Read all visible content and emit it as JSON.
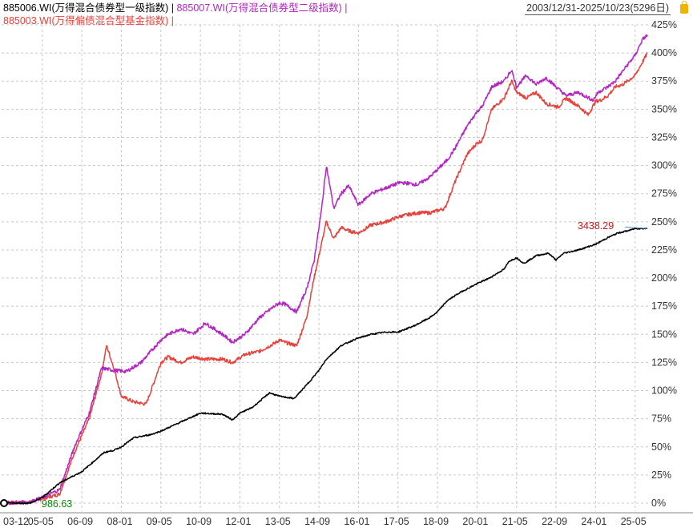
{
  "legend": {
    "s1": "885006.WI(万得混合债券型一级指数) |",
    "s2": "885007.WI(万得混合债券型二级指数) |",
    "s3": "885003.WI(万得偏债混合型基金指数) |"
  },
  "range_label": "2003/12/31-2025/10/23(5296日)",
  "end_label": "3438.29",
  "start_label": "986.63",
  "colors": {
    "s1": "#000000",
    "s2": "#b326c1",
    "s3": "#e8403a",
    "grid": "#c8c8c8",
    "axis_text": "#333333",
    "end_label": "#c0171b",
    "start_label": "#0a8a0a"
  },
  "chart_data": {
    "type": "line",
    "y_axis_side": "right",
    "y_unit": "%",
    "ylim": [
      0,
      425
    ],
    "yticks": [
      "0%",
      "25%",
      "50%",
      "75%",
      "100%",
      "125%",
      "150%",
      "175%",
      "200%",
      "225%",
      "250%",
      "275%",
      "300%",
      "325%",
      "350%",
      "375%",
      "400%",
      "425%"
    ],
    "x_ticks": [
      "03-12",
      "05-05",
      "06-09",
      "08-01",
      "09-05",
      "10-09",
      "12-01",
      "13-05",
      "14-09",
      "16-01",
      "17-05",
      "18-09",
      "20-01",
      "21-05",
      "22-09",
      "24-01",
      "25-05"
    ],
    "grid": true,
    "series": [
      {
        "name": "885006.WI(万得混合债券型一级指数)",
        "x": [
          "2003-12",
          "2004-12",
          "2005-05",
          "2005-12",
          "2006-09",
          "2007-06",
          "2007-10",
          "2008-01",
          "2008-06",
          "2009-01",
          "2009-05",
          "2009-08",
          "2009-12",
          "2010-09",
          "2011-06",
          "2011-10",
          "2012-01",
          "2012-06",
          "2013-01",
          "2013-05",
          "2013-11",
          "2014-04",
          "2014-09",
          "2014-12",
          "2015-06",
          "2015-12",
          "2016-06",
          "2016-12",
          "2017-05",
          "2017-12",
          "2018-06",
          "2018-09",
          "2019-01",
          "2019-06",
          "2020-01",
          "2020-06",
          "2020-12",
          "2021-02",
          "2021-05",
          "2021-08",
          "2022-01",
          "2022-06",
          "2022-09",
          "2022-12",
          "2023-06",
          "2024-01",
          "2024-06",
          "2024-10",
          "2025-02",
          "2025-05",
          "2025-10"
        ],
        "values": [
          0,
          0,
          5,
          18,
          28,
          45,
          47,
          50,
          58,
          61,
          64,
          67,
          71,
          80,
          79,
          74,
          80,
          85,
          98,
          95,
          93,
          105,
          118,
          128,
          140,
          146,
          150,
          152,
          152,
          158,
          165,
          170,
          180,
          187,
          195,
          200,
          208,
          215,
          218,
          213,
          220,
          222,
          216,
          222,
          225,
          230,
          236,
          240,
          242,
          244,
          244
        ]
      },
      {
        "name": "885007.WI(万得混合债券型二级指数)",
        "x": [
          "2003-12",
          "2004-12",
          "2005-05",
          "2005-12",
          "2006-06",
          "2006-12",
          "2007-05",
          "2007-10",
          "2008-03",
          "2008-09",
          "2009-01",
          "2009-05",
          "2009-08",
          "2010-01",
          "2010-06",
          "2010-11",
          "2011-06",
          "2011-10",
          "2012-03",
          "2012-09",
          "2013-03",
          "2013-05",
          "2013-07",
          "2013-12",
          "2014-04",
          "2014-07",
          "2014-10",
          "2014-12",
          "2015-03",
          "2015-06",
          "2015-09",
          "2016-01",
          "2016-06",
          "2016-12",
          "2017-06",
          "2018-01",
          "2018-06",
          "2019-01",
          "2019-04",
          "2019-09",
          "2020-01",
          "2020-03",
          "2020-07",
          "2020-12",
          "2021-03",
          "2021-05",
          "2021-09",
          "2022-01",
          "2022-05",
          "2022-10",
          "2023-01",
          "2023-06",
          "2023-12",
          "2024-02",
          "2024-06",
          "2024-09",
          "2024-12",
          "2025-05",
          "2025-08",
          "2025-10"
        ],
        "values": [
          0,
          1,
          5,
          12,
          50,
          80,
          120,
          118,
          117,
          125,
          135,
          145,
          150,
          155,
          150,
          160,
          150,
          143,
          150,
          165,
          175,
          178,
          177,
          170,
          190,
          215,
          260,
          300,
          262,
          275,
          282,
          265,
          275,
          280,
          285,
          283,
          290,
          305,
          315,
          335,
          348,
          352,
          370,
          375,
          385,
          370,
          380,
          372,
          378,
          368,
          362,
          365,
          358,
          365,
          370,
          375,
          384,
          398,
          412,
          416
        ]
      },
      {
        "name": "885003.WI(万得偏债混合型基金指数)",
        "x": [
          "2003-12",
          "2004-12",
          "2005-05",
          "2005-12",
          "2006-06",
          "2006-12",
          "2007-05",
          "2007-07",
          "2007-10",
          "2008-01",
          "2008-06",
          "2008-11",
          "2009-01",
          "2009-05",
          "2009-08",
          "2010-01",
          "2010-06",
          "2010-11",
          "2011-06",
          "2011-10",
          "2012-03",
          "2012-09",
          "2013-03",
          "2013-05",
          "2013-07",
          "2013-12",
          "2014-04",
          "2014-07",
          "2014-10",
          "2014-12",
          "2015-03",
          "2015-06",
          "2015-09",
          "2016-01",
          "2016-06",
          "2016-12",
          "2017-06",
          "2018-01",
          "2018-06",
          "2018-12",
          "2019-04",
          "2019-09",
          "2020-01",
          "2020-03",
          "2020-07",
          "2020-12",
          "2021-03",
          "2021-05",
          "2021-09",
          "2022-01",
          "2022-05",
          "2022-10",
          "2023-01",
          "2023-06",
          "2023-10",
          "2024-01",
          "2024-03",
          "2024-06",
          "2024-09",
          "2024-12",
          "2025-05",
          "2025-08",
          "2025-10"
        ],
        "values": [
          0,
          1,
          4,
          8,
          45,
          75,
          115,
          140,
          120,
          95,
          90,
          88,
          100,
          125,
          130,
          125,
          130,
          128,
          128,
          125,
          132,
          135,
          142,
          145,
          143,
          140,
          165,
          200,
          230,
          250,
          235,
          245,
          242,
          240,
          247,
          250,
          255,
          258,
          258,
          262,
          285,
          310,
          320,
          322,
          350,
          360,
          375,
          365,
          360,
          365,
          355,
          352,
          360,
          353,
          345,
          357,
          358,
          362,
          370,
          372,
          380,
          392,
          400
        ]
      }
    ]
  }
}
